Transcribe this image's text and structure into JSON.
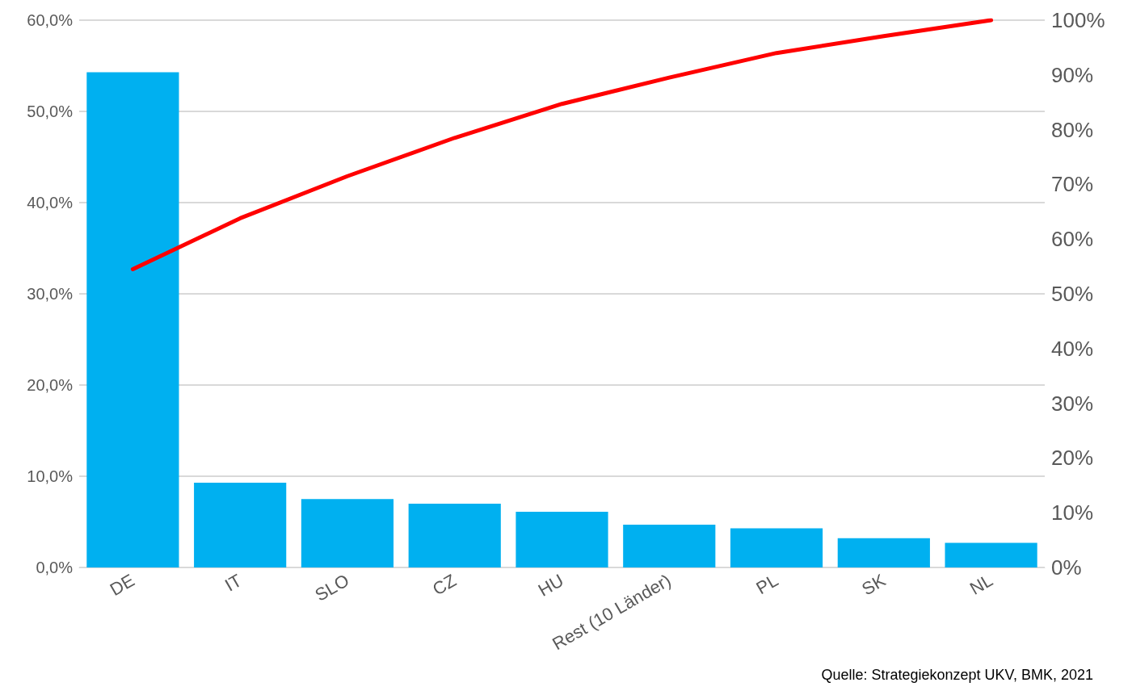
{
  "chart_data": {
    "type": "bar",
    "categories": [
      "DE",
      "IT",
      "SLO",
      "CZ",
      "HU",
      "Rest (10 Länder)",
      "PL",
      "SK",
      "NL"
    ],
    "series": [
      {
        "color": "#00b0f0",
        "values": [
          54.3,
          9.3,
          7.5,
          7.0,
          6.1,
          4.7,
          4.3,
          3.2,
          2.7
        ]
      },
      {
        "type": "line",
        "axis": "y2",
        "color": "#ff0000",
        "values": [
          54.5,
          63.8,
          71.5,
          78.5,
          84.7,
          89.5,
          94.0,
          97.1,
          100
        ]
      }
    ],
    "ylim": [
      0,
      60
    ],
    "yticks": [
      {
        "value": 0,
        "label": "0,0%"
      },
      {
        "value": 10,
        "label": "10,0%"
      },
      {
        "value": 20,
        "label": "20,0%"
      },
      {
        "value": 30,
        "label": "30,0%"
      },
      {
        "value": 40,
        "label": "40,0%"
      },
      {
        "value": 50,
        "label": "50,0%"
      },
      {
        "value": 60,
        "label": "60,0%"
      }
    ],
    "y2lim": [
      0,
      100
    ],
    "y2ticks": [
      {
        "value": 0,
        "label": "0%"
      },
      {
        "value": 10,
        "label": "10%"
      },
      {
        "value": 20,
        "label": "20%"
      },
      {
        "value": 30,
        "label": "30%"
      },
      {
        "value": 40,
        "label": "40%"
      },
      {
        "value": 50,
        "label": "50%"
      },
      {
        "value": 60,
        "label": "60%"
      },
      {
        "value": 70,
        "label": "70%"
      },
      {
        "value": 80,
        "label": "80%"
      },
      {
        "value": 90,
        "label": "90%"
      },
      {
        "value": 100,
        "label": "100%"
      }
    ],
    "grid": "y",
    "marker": "none",
    "line_style": "solid",
    "annotations": [
      "Quelle: Strategiekonzept UKV, BMK, 2021"
    ]
  }
}
